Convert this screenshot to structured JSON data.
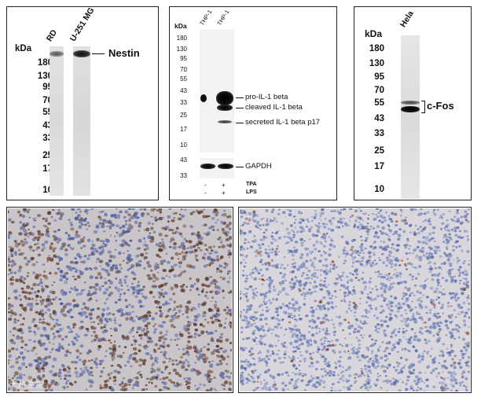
{
  "panel_nestin": {
    "unit": "kDa",
    "lane_labels": [
      "RD",
      "U-251 MG"
    ],
    "markers": [
      "180",
      "130",
      "95",
      "70",
      "55",
      "43",
      "33",
      "25",
      "17",
      "10"
    ],
    "band_label": "Nestin"
  },
  "panel_il1b": {
    "unit": "kDa",
    "lane_labels": [
      "THP-1",
      "THP-1"
    ],
    "markers": [
      "180",
      "130",
      "95",
      "70",
      "55",
      "43",
      "33",
      "25",
      "17",
      "10"
    ],
    "markers_gapdh": [
      "43",
      "33"
    ],
    "band_labels": [
      "pro-IL-1 beta",
      "cleaved IL-1 beta",
      "secreted IL-1 beta p17"
    ],
    "loading_label": "GAPDH",
    "treatment_rows": [
      {
        "lane1": "-",
        "lane2": "+",
        "label": "TPA"
      },
      {
        "lane1": "-",
        "lane2": "+",
        "label": "LPS"
      }
    ]
  },
  "panel_cfos": {
    "unit": "kDa",
    "lane_label": "Hela",
    "markers": [
      "180",
      "130",
      "95",
      "70",
      "55",
      "43",
      "33",
      "25",
      "17",
      "10"
    ],
    "band_label": "c-Fos"
  },
  "watermark": "大晶生物"
}
